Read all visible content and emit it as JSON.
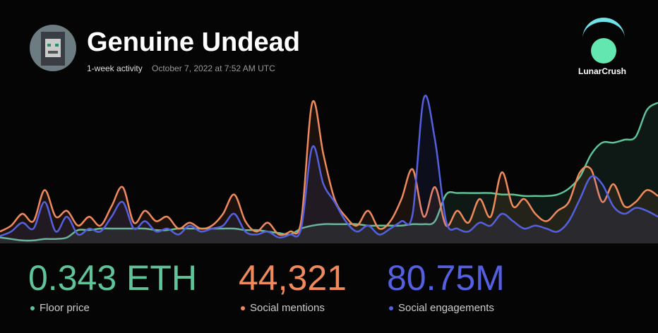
{
  "title": "Genuine Undead",
  "subtitle": "1-week activity",
  "timestamp": "October 7, 2022 at 7:52 AM UTC",
  "brand": "LunarCrush",
  "chart_data": {
    "type": "line",
    "ylim": [
      0,
      100
    ],
    "series": [
      {
        "name": "Floor price",
        "color": "#5fc49a",
        "total": "0.343 ETH",
        "values": [
          4,
          3,
          2,
          2,
          3,
          3,
          4,
          9,
          9,
          10,
          10,
          10,
          10,
          10,
          9,
          9,
          10,
          10,
          10,
          10,
          10,
          10,
          9,
          9,
          8,
          7,
          6,
          10,
          12,
          13,
          13,
          13,
          13,
          12,
          12,
          12,
          12,
          13,
          13,
          15,
          33,
          34,
          34,
          34,
          34,
          33,
          33,
          32,
          32,
          32,
          33,
          37,
          45,
          60,
          68,
          68,
          70,
          72,
          90,
          95
        ]
      },
      {
        "name": "Social mentions",
        "color": "#f08a5d",
        "total": "44,321",
        "values": [
          8,
          12,
          20,
          15,
          36,
          18,
          22,
          12,
          18,
          12,
          25,
          38,
          14,
          22,
          15,
          18,
          10,
          14,
          10,
          12,
          20,
          33,
          15,
          8,
          14,
          6,
          8,
          15,
          95,
          60,
          30,
          18,
          12,
          22,
          10,
          15,
          30,
          50,
          18,
          38,
          12,
          22,
          14,
          30,
          18,
          48,
          25,
          30,
          20,
          15,
          22,
          28,
          48,
          50,
          28,
          40,
          25,
          28,
          36,
          32
        ]
      },
      {
        "name": "Social engagements",
        "color": "#5560e0",
        "total": "80.75M",
        "values": [
          5,
          8,
          14,
          10,
          28,
          8,
          18,
          6,
          10,
          8,
          18,
          28,
          10,
          15,
          8,
          10,
          6,
          12,
          8,
          10,
          12,
          20,
          8,
          6,
          8,
          4,
          6,
          10,
          65,
          40,
          28,
          15,
          8,
          12,
          6,
          10,
          15,
          20,
          98,
          70,
          15,
          10,
          8,
          14,
          12,
          20,
          15,
          10,
          12,
          10,
          8,
          15,
          30,
          45,
          40,
          25,
          20,
          24,
          22,
          18
        ]
      }
    ]
  }
}
